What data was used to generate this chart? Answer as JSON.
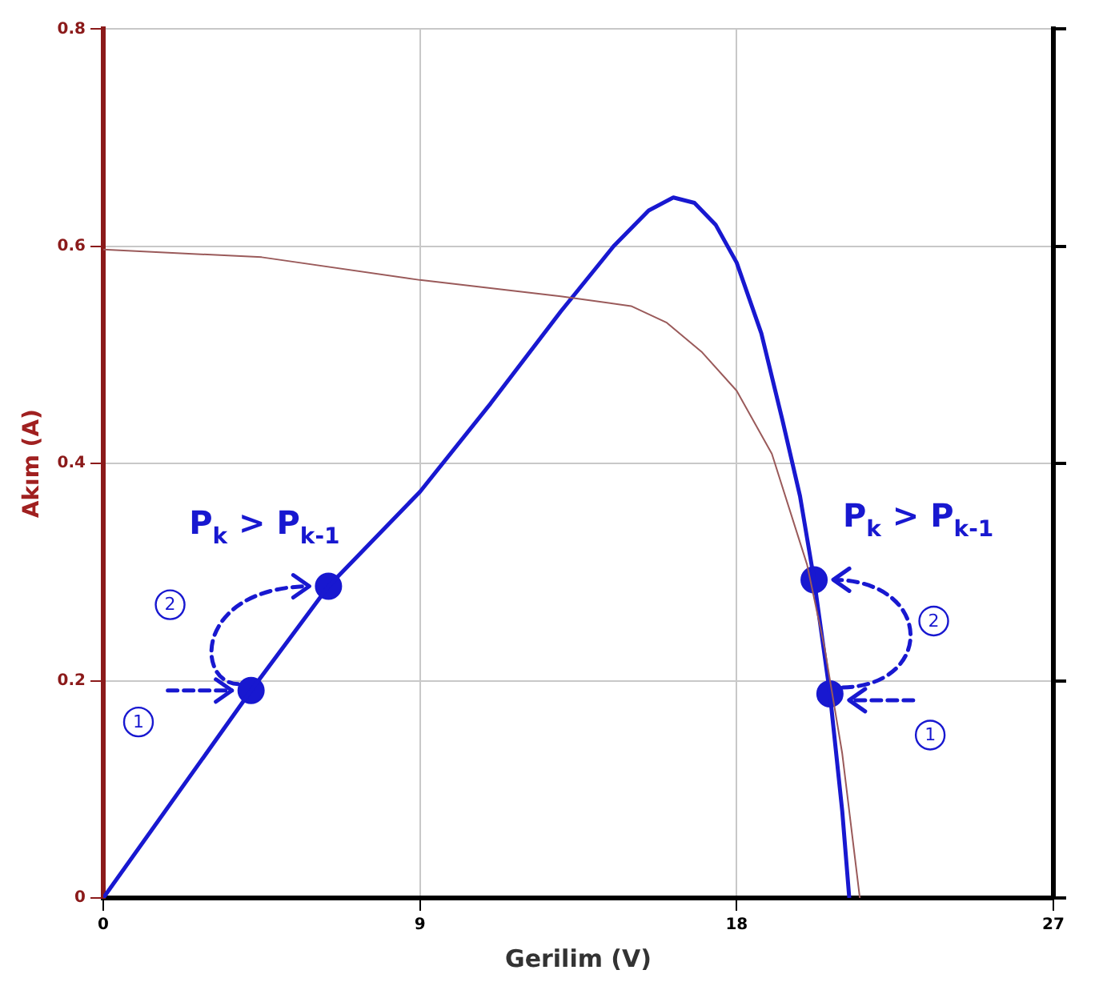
{
  "chart_data": {
    "type": "line",
    "xlabel": "Gerilim (V)",
    "ylabel": "Akım (A)",
    "x": [
      0,
      4.5,
      9,
      13,
      15,
      16,
      17,
      18,
      19,
      20,
      20.5,
      21,
      21.5
    ],
    "series": [
      {
        "color": "#9a5a5a",
        "values": [
          0.597,
          0.59,
          0.569,
          0.554,
          0.545,
          0.53,
          0.503,
          0.467,
          0.409,
          0.307,
          0.23,
          0.133,
          0
        ]
      },
      {
        "color": "#1818d0",
        "x": [
          0,
          4.2,
          6.4,
          9,
          11,
          13,
          14.5,
          15.5,
          16.2,
          16.8,
          17.4,
          18,
          18.7,
          19.3,
          19.8,
          20.2,
          20.65,
          21,
          21.2
        ],
        "values": [
          0,
          0.191,
          0.287,
          0.374,
          0.455,
          0.54,
          0.6,
          0.633,
          0.645,
          0.64,
          0.62,
          0.585,
          0.52,
          0.44,
          0.37,
          0.293,
          0.188,
          0.08,
          0
        ]
      },
      {
        "type": "scatter",
        "marker": "circle",
        "color": "#1818d0",
        "x": [
          4.2,
          6.4,
          20.2,
          20.65
        ],
        "values": [
          0.191,
          0.287,
          0.293,
          0.188
        ]
      }
    ],
    "xlim": [
      0,
      27
    ],
    "xticks": [
      0,
      9,
      18,
      27
    ],
    "ylim": [
      0,
      0.8
    ],
    "yticks": [
      0,
      0.2,
      0.4,
      0.6,
      0.8
    ],
    "grid": true,
    "legend": false,
    "marker": "none",
    "line_style": "solid",
    "annotations": [
      "P$_{k}$ > P$_{k-1}$",
      "P$_{k}$ > P$_{k-1}$",
      {
        "text": "1",
        "x": 1,
        "y": 0.162
      },
      {
        "text": "2",
        "x": 1.9,
        "y": 0.27
      },
      {
        "text": "1",
        "x": 23.5,
        "y": 0.15
      },
      {
        "text": "2",
        "x": 23.6,
        "y": 0.255
      }
    ]
  }
}
